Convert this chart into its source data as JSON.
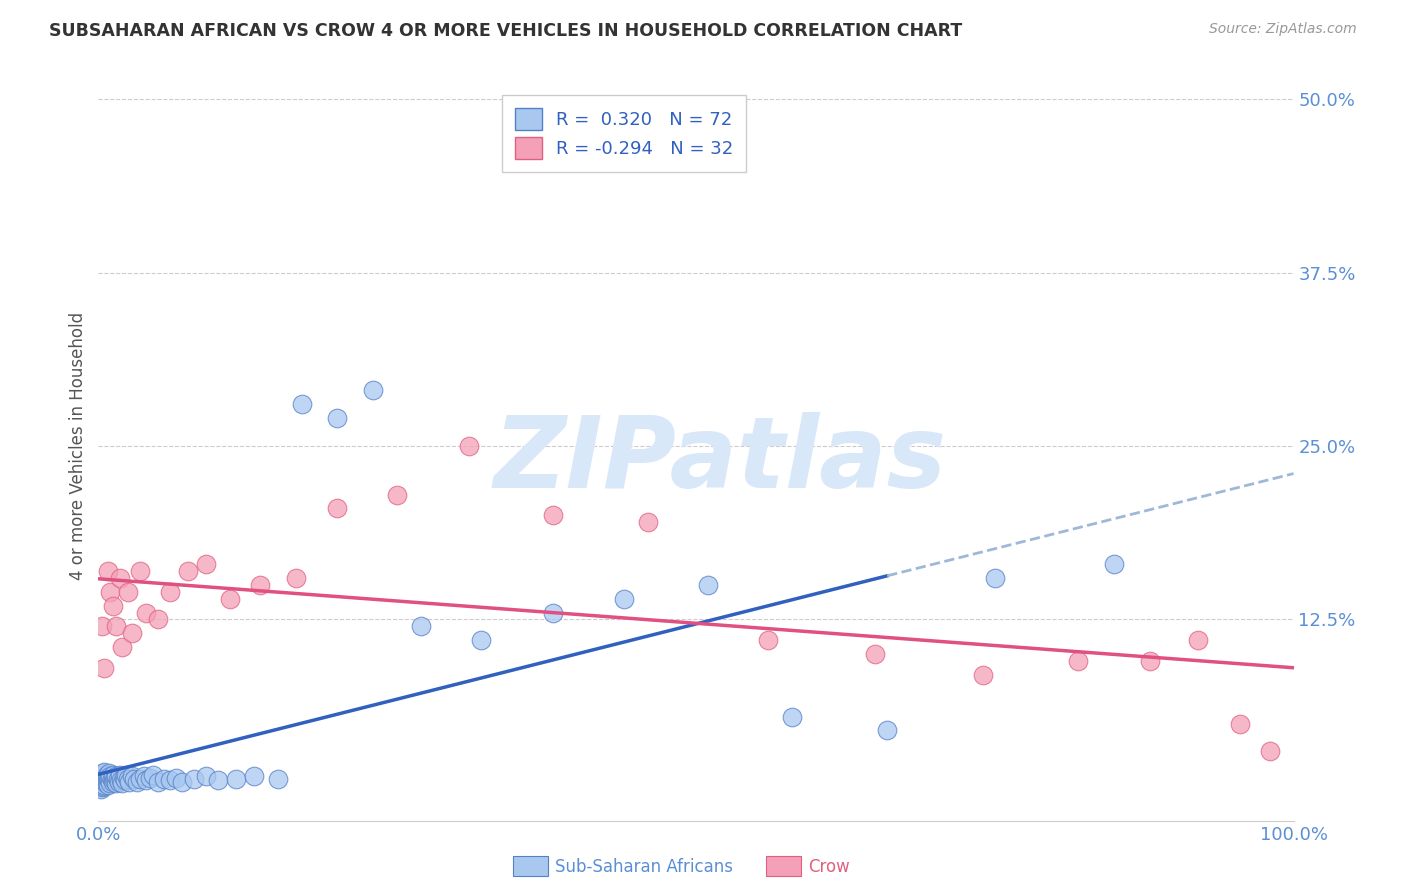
{
  "title": "SUBSAHARAN AFRICAN VS CROW 4 OR MORE VEHICLES IN HOUSEHOLD CORRELATION CHART",
  "source": "Source: ZipAtlas.com",
  "ylabel": "4 or more Vehicles in Household",
  "xlim": [
    0,
    1.0
  ],
  "ylim": [
    -0.02,
    0.52
  ],
  "xticks": [
    0.0,
    0.2,
    0.4,
    0.6,
    0.8,
    1.0
  ],
  "xticklabels": [
    "0.0%",
    "",
    "",
    "",
    "",
    "100.0%"
  ],
  "yticks": [
    0.0,
    0.125,
    0.25,
    0.375,
    0.5
  ],
  "yticklabels": [
    "",
    "12.5%",
    "25.0%",
    "37.5%",
    "50.0%"
  ],
  "blue_R": 0.32,
  "blue_N": 72,
  "pink_R": -0.294,
  "pink_N": 32,
  "blue_color": "#A8C8F0",
  "pink_color": "#F4A0B8",
  "blue_edge_color": "#5580C8",
  "pink_edge_color": "#E06080",
  "blue_line_color": "#3060C0",
  "pink_line_color": "#E05080",
  "dashed_line_color": "#A0B8D8",
  "watermark_color": "#D8E8F8",
  "legend_label_blue": "Sub-Saharan Africans",
  "legend_label_pink": "Crow",
  "blue_scatter_x": [
    0.001,
    0.001,
    0.002,
    0.002,
    0.002,
    0.003,
    0.003,
    0.003,
    0.004,
    0.004,
    0.004,
    0.005,
    0.005,
    0.005,
    0.006,
    0.006,
    0.007,
    0.007,
    0.008,
    0.008,
    0.009,
    0.009,
    0.01,
    0.01,
    0.011,
    0.012,
    0.012,
    0.013,
    0.014,
    0.015,
    0.015,
    0.016,
    0.017,
    0.018,
    0.019,
    0.02,
    0.021,
    0.022,
    0.023,
    0.025,
    0.026,
    0.028,
    0.03,
    0.032,
    0.035,
    0.038,
    0.04,
    0.043,
    0.046,
    0.05,
    0.055,
    0.06,
    0.065,
    0.07,
    0.08,
    0.09,
    0.1,
    0.115,
    0.13,
    0.15,
    0.17,
    0.2,
    0.23,
    0.27,
    0.32,
    0.38,
    0.44,
    0.51,
    0.58,
    0.66,
    0.75,
    0.85
  ],
  "blue_scatter_y": [
    0.005,
    0.008,
    0.003,
    0.007,
    0.012,
    0.004,
    0.008,
    0.013,
    0.005,
    0.009,
    0.014,
    0.006,
    0.01,
    0.015,
    0.007,
    0.011,
    0.008,
    0.013,
    0.006,
    0.011,
    0.009,
    0.014,
    0.007,
    0.012,
    0.01,
    0.008,
    0.013,
    0.009,
    0.011,
    0.007,
    0.012,
    0.01,
    0.008,
    0.013,
    0.009,
    0.007,
    0.011,
    0.009,
    0.013,
    0.01,
    0.008,
    0.012,
    0.01,
    0.008,
    0.01,
    0.012,
    0.009,
    0.011,
    0.013,
    0.008,
    0.01,
    0.009,
    0.011,
    0.008,
    0.01,
    0.012,
    0.009,
    0.01,
    0.012,
    0.01,
    0.28,
    0.27,
    0.29,
    0.12,
    0.11,
    0.13,
    0.14,
    0.15,
    0.055,
    0.045,
    0.155,
    0.165
  ],
  "pink_scatter_x": [
    0.003,
    0.005,
    0.008,
    0.01,
    0.012,
    0.015,
    0.018,
    0.02,
    0.025,
    0.028,
    0.035,
    0.04,
    0.05,
    0.06,
    0.075,
    0.09,
    0.11,
    0.135,
    0.165,
    0.2,
    0.25,
    0.31,
    0.38,
    0.46,
    0.56,
    0.65,
    0.74,
    0.82,
    0.88,
    0.92,
    0.955,
    0.98
  ],
  "pink_scatter_y": [
    0.12,
    0.09,
    0.16,
    0.145,
    0.135,
    0.12,
    0.155,
    0.105,
    0.145,
    0.115,
    0.16,
    0.13,
    0.125,
    0.145,
    0.16,
    0.165,
    0.14,
    0.15,
    0.155,
    0.205,
    0.215,
    0.25,
    0.2,
    0.195,
    0.11,
    0.1,
    0.085,
    0.095,
    0.095,
    0.11,
    0.05,
    0.03
  ]
}
